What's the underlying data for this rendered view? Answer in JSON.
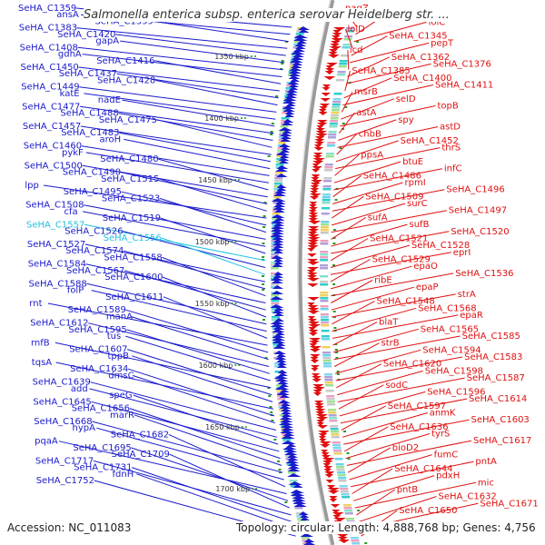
{
  "title": "Salmonella enterica subsp. enterica serovar Heidelberg str. ...",
  "accession": "Accession: NC_011083",
  "topology": "Topology: circular; Length: 4,888,768 bp; Genes: 4,756",
  "colors": {
    "left_genes": "#1a1acc",
    "right_genes": "#e01010",
    "highlight": "#22c0e0",
    "backbone": "#888888",
    "kbp_tick": "#1a8a1a"
  },
  "kbp_labels": [
    "1350 kbp",
    "1400 kbp",
    "1450 kbp",
    "1500 kbp",
    "1550 kbp",
    "1600 kbp",
    "1650 kbp",
    "1700 kbp"
  ],
  "left_labels": [
    {
      "text": "SeHA_C1359",
      "hl": false
    },
    {
      "text": "ansA",
      "hl": false
    },
    {
      "text": "SeHA_C1399",
      "hl": false
    },
    {
      "text": "SeHA_C1383",
      "hl": false
    },
    {
      "text": "SeHA_C1420",
      "hl": false
    },
    {
      "text": "gapA",
      "hl": false
    },
    {
      "text": "SeHA_C1408",
      "hl": false
    },
    {
      "text": "gdhA",
      "hl": false
    },
    {
      "text": "SeHA_C1416",
      "hl": false
    },
    {
      "text": "SeHA_C1450",
      "hl": false
    },
    {
      "text": "SeHA_C1437",
      "hl": false
    },
    {
      "text": "SeHA_C1428",
      "hl": false
    },
    {
      "text": "SeHA_C1449",
      "hl": false
    },
    {
      "text": "katE",
      "hl": false
    },
    {
      "text": "nadE",
      "hl": false
    },
    {
      "text": "SeHA_C1477",
      "hl": false
    },
    {
      "text": "SeHA_C1488",
      "hl": false
    },
    {
      "text": "SeHA_C1475",
      "hl": false
    },
    {
      "text": "SeHA_C1457",
      "hl": false
    },
    {
      "text": "SeHA_C1483",
      "hl": false
    },
    {
      "text": "aroH",
      "hl": false
    },
    {
      "text": "SeHA_C1460",
      "hl": false
    },
    {
      "text": "pykF",
      "hl": false
    },
    {
      "text": "SeHA_C1480",
      "hl": false
    },
    {
      "text": "SeHA_C1500",
      "hl": false
    },
    {
      "text": "SeHA_C1490",
      "hl": false
    },
    {
      "text": "SeHA_C1515",
      "hl": false
    },
    {
      "text": "lpp",
      "hl": false
    },
    {
      "text": "SeHA_C1495",
      "hl": false
    },
    {
      "text": "SeHA_C1523",
      "hl": false
    },
    {
      "text": "SeHA_C1508",
      "hl": false
    },
    {
      "text": "cfa",
      "hl": false
    },
    {
      "text": "SeHA_C1519",
      "hl": false
    },
    {
      "text": "SeHA_C1557",
      "hl": true
    },
    {
      "text": "SeHA_C1526",
      "hl": false
    },
    {
      "text": "SeHA_C1556",
      "hl": true
    },
    {
      "text": "SeHA_C1527",
      "hl": false
    },
    {
      "text": "SeHA_C1574",
      "hl": false
    },
    {
      "text": "SeHA_C1558",
      "hl": false
    },
    {
      "text": "SeHA_C1584",
      "hl": false
    },
    {
      "text": "SeHA_C1567",
      "hl": false
    },
    {
      "text": "SeHA_C1600",
      "hl": false
    },
    {
      "text": "SeHA_C1588",
      "hl": false
    },
    {
      "text": "folP",
      "hl": false
    },
    {
      "text": "SeHA_C1611",
      "hl": false
    },
    {
      "text": "rnt",
      "hl": false
    },
    {
      "text": "SeHA_C1589",
      "hl": false
    },
    {
      "text": "manA",
      "hl": false
    },
    {
      "text": "SeHA_C1612",
      "hl": false
    },
    {
      "text": "SeHA_C1595",
      "hl": false
    },
    {
      "text": "tus",
      "hl": false
    },
    {
      "text": "rnfB",
      "hl": false
    },
    {
      "text": "SeHA_C1607",
      "hl": false
    },
    {
      "text": "tppB",
      "hl": false
    },
    {
      "text": "tqsA",
      "hl": false
    },
    {
      "text": "SeHA_C1634",
      "hl": false
    },
    {
      "text": "dmsC",
      "hl": false
    },
    {
      "text": "SeHA_C1639",
      "hl": false
    },
    {
      "text": "add",
      "hl": false
    },
    {
      "text": "speG",
      "hl": false
    },
    {
      "text": "SeHA_C1645",
      "hl": false
    },
    {
      "text": "SeHA_C1656",
      "hl": false
    },
    {
      "text": "marR",
      "hl": false
    },
    {
      "text": "SeHA_C1668",
      "hl": false
    },
    {
      "text": "hypA",
      "hl": false
    },
    {
      "text": "SeHA_C1682",
      "hl": false
    },
    {
      "text": "pqaA",
      "hl": false
    },
    {
      "text": "SeHA_C1695",
      "hl": false
    },
    {
      "text": "SeHA_C1709",
      "hl": false
    },
    {
      "text": "SeHA_C1717",
      "hl": false
    },
    {
      "text": "SeHA_C1731",
      "hl": false
    },
    {
      "text": "fdnH",
      "hl": false
    },
    {
      "text": "SeHA_C1752",
      "hl": false
    }
  ],
  "right_labels": [
    {
      "text": "nagZ"
    },
    {
      "text": "ndh"
    },
    {
      "text": "lolC"
    },
    {
      "text": "lolD"
    },
    {
      "text": "SeHA_C1345"
    },
    {
      "text": "pepT"
    },
    {
      "text": "icd"
    },
    {
      "text": "SeHA_C1362"
    },
    {
      "text": "SeHA_C1376"
    },
    {
      "text": "SeHA_C1385"
    },
    {
      "text": "SeHA_C1400"
    },
    {
      "text": "SeHA_C1411"
    },
    {
      "text": "msrB"
    },
    {
      "text": "selD"
    },
    {
      "text": "topB"
    },
    {
      "text": "astA"
    },
    {
      "text": "spy"
    },
    {
      "text": "astD"
    },
    {
      "text": "chbB"
    },
    {
      "text": "SeHA_C1452"
    },
    {
      "text": "thrS"
    },
    {
      "text": "ppsA"
    },
    {
      "text": "btuE"
    },
    {
      "text": "infC"
    },
    {
      "text": "SeHA_C1486"
    },
    {
      "text": "rpmI"
    },
    {
      "text": "SeHA_C1496"
    },
    {
      "text": "SeHA_C1509"
    },
    {
      "text": "surC"
    },
    {
      "text": "SeHA_C1497"
    },
    {
      "text": "sufA"
    },
    {
      "text": "sufB"
    },
    {
      "text": "SeHA_C1520"
    },
    {
      "text": "SeHA_C1521"
    },
    {
      "text": "SeHA_C1528"
    },
    {
      "text": "eprI"
    },
    {
      "text": "SeHA_C1529"
    },
    {
      "text": "epaO"
    },
    {
      "text": "SeHA_C1536"
    },
    {
      "text": "ribE"
    },
    {
      "text": "epaP"
    },
    {
      "text": "strA"
    },
    {
      "text": "SeHA_C1548"
    },
    {
      "text": "SeHA_C1568"
    },
    {
      "text": "epaR"
    },
    {
      "text": "blaT"
    },
    {
      "text": "SeHA_C1565"
    },
    {
      "text": "SeHA_C1585"
    },
    {
      "text": "strB"
    },
    {
      "text": "SeHA_C1594"
    },
    {
      "text": "SeHA_C1583"
    },
    {
      "text": "SeHA_C1620"
    },
    {
      "text": "SeHA_C1598"
    },
    {
      "text": "SeHA_C1587"
    },
    {
      "text": "sodC"
    },
    {
      "text": "SeHA_C1596"
    },
    {
      "text": "SeHA_C1614"
    },
    {
      "text": "SeHA_C1597"
    },
    {
      "text": "anmK"
    },
    {
      "text": "SeHA_C1603"
    },
    {
      "text": "SeHA_C1636"
    },
    {
      "text": "tyrS"
    },
    {
      "text": "SeHA_C1617"
    },
    {
      "text": "bioD2"
    },
    {
      "text": "fumC"
    },
    {
      "text": "pntA"
    },
    {
      "text": "SeHA_C1644"
    },
    {
      "text": "pdxH"
    },
    {
      "text": "mic"
    },
    {
      "text": "pntB"
    },
    {
      "text": "SeHA_C1632"
    },
    {
      "text": "SeHA_C1671"
    },
    {
      "text": "SeHA_C1650"
    }
  ]
}
